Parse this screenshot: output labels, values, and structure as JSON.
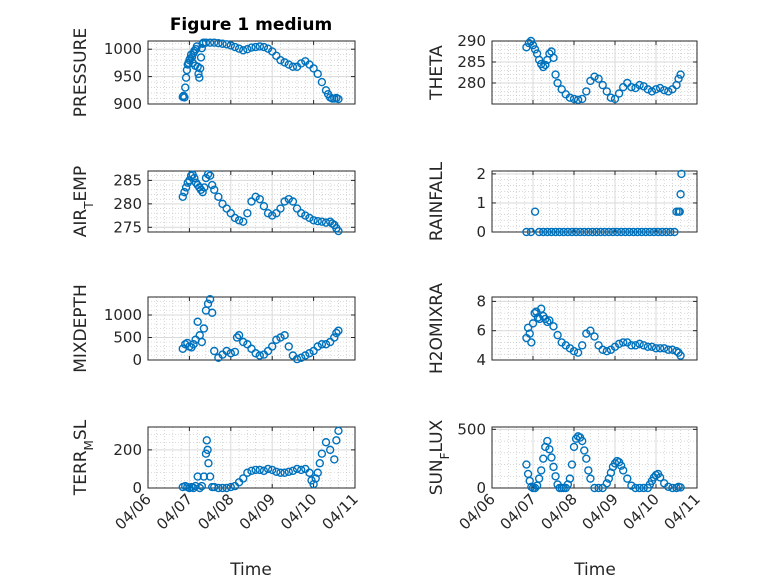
{
  "colors": {
    "marker": "#0072BD",
    "axis": "#262626",
    "grid": "#bfbfbf"
  },
  "chart_data": {
    "type": "scatter",
    "title": "Figure 1 medium",
    "xlabel": "Time",
    "x_ticks": [
      "04/06",
      "04/07",
      "04/08",
      "04/09",
      "04/10",
      "04/11"
    ],
    "grid": true,
    "panels": [
      {
        "ylabel": "PRESSURE",
        "ylim": [
          900,
          1015
        ],
        "yticks": [
          "900",
          "950",
          "1000"
        ],
        "ytick_values": [
          900,
          950,
          1000
        ],
        "x": [
          6.84,
          6.86,
          6.88,
          6.9,
          6.92,
          6.94,
          6.96,
          6.98,
          7.0,
          7.02,
          7.04,
          7.06,
          7.08,
          7.1,
          7.12,
          7.14,
          7.16,
          7.18,
          7.2,
          7.22,
          7.24,
          7.26,
          7.28,
          7.3,
          7.32,
          7.34,
          7.4,
          7.5,
          7.6,
          7.7,
          7.8,
          7.9,
          8.0,
          8.1,
          8.2,
          8.3,
          8.4,
          8.5,
          8.6,
          8.7,
          8.8,
          8.9,
          9.0,
          9.1,
          9.2,
          9.3,
          9.4,
          9.5,
          9.6,
          9.7,
          9.8,
          9.9,
          10.0,
          10.1,
          10.2,
          10.3,
          10.35,
          10.4,
          10.45,
          10.5,
          10.55,
          10.6
        ],
        "y": [
          913,
          915,
          912,
          930,
          948,
          962,
          972,
          975,
          980,
          983,
          990,
          985,
          975,
          993,
          997,
          970,
          1000,
          1005,
          968,
          955,
          948,
          965,
          985,
          1002,
          1010,
          1012,
          1012,
          1012,
          1012,
          1011,
          1010,
          1009,
          1007,
          1004,
          1001,
          998,
          1000,
          1003,
          1004,
          1005,
          1004,
          1001,
          996,
          988,
          980,
          976,
          972,
          968,
          968,
          974,
          978,
          972,
          965,
          955,
          940,
          925,
          918,
          912,
          910,
          910,
          911,
          909
        ]
      },
      {
        "ylabel": "THETA",
        "ylim": [
          275,
          290
        ],
        "yticks": [
          "280",
          "285",
          "290"
        ],
        "ytick_values": [
          280,
          285,
          290
        ],
        "x": [
          6.84,
          6.9,
          6.95,
          7.0,
          7.05,
          7.1,
          7.15,
          7.2,
          7.25,
          7.3,
          7.35,
          7.4,
          7.45,
          7.5,
          7.55,
          7.6,
          7.7,
          7.8,
          7.9,
          8.0,
          8.1,
          8.2,
          8.3,
          8.4,
          8.5,
          8.6,
          8.7,
          8.8,
          8.9,
          9.0,
          9.1,
          9.2,
          9.3,
          9.4,
          9.5,
          9.6,
          9.7,
          9.8,
          9.9,
          10.0,
          10.1,
          10.2,
          10.3,
          10.4,
          10.5,
          10.55,
          10.6
        ],
        "y": [
          288.5,
          289.5,
          290,
          289,
          288,
          287,
          285.5,
          284.5,
          283.8,
          284.3,
          285.5,
          287,
          287.5,
          286,
          282,
          280,
          278.5,
          277.3,
          276.5,
          276.2,
          276,
          276.2,
          278,
          280.5,
          281.5,
          281,
          279.5,
          278,
          276.5,
          276.2,
          277.5,
          279,
          280,
          279,
          278.8,
          279.5,
          279.2,
          278.5,
          278,
          278.5,
          278.8,
          278.3,
          278,
          278.5,
          279.5,
          281,
          282
        ]
      },
      {
        "ylabel": "AIR_TEMP",
        "ylim": [
          274,
          287
        ],
        "yticks": [
          "275",
          "280",
          "285"
        ],
        "ytick_values": [
          275,
          280,
          285
        ],
        "x": [
          6.84,
          6.88,
          6.92,
          6.96,
          7.0,
          7.04,
          7.08,
          7.12,
          7.16,
          7.2,
          7.24,
          7.28,
          7.32,
          7.36,
          7.4,
          7.45,
          7.5,
          7.55,
          7.6,
          7.7,
          7.8,
          7.9,
          8.0,
          8.1,
          8.2,
          8.3,
          8.4,
          8.5,
          8.6,
          8.7,
          8.8,
          8.9,
          9.0,
          9.1,
          9.2,
          9.3,
          9.4,
          9.5,
          9.6,
          9.7,
          9.8,
          9.9,
          10.0,
          10.1,
          10.2,
          10.3,
          10.4,
          10.45,
          10.5,
          10.55,
          10.6
        ],
        "y": [
          281.5,
          282.5,
          283.5,
          284.5,
          285,
          286,
          286.2,
          285.5,
          284.5,
          284,
          283.5,
          283,
          282.5,
          283.5,
          285.5,
          286.3,
          286,
          284,
          283,
          281.5,
          280,
          279,
          278,
          277,
          276.5,
          276.2,
          278,
          280.5,
          281.5,
          281,
          279.5,
          278,
          277.5,
          278,
          279,
          280.5,
          281,
          280.5,
          279,
          278,
          277.5,
          277,
          276.5,
          276.3,
          276.2,
          276,
          276.2,
          275.8,
          275.5,
          274.8,
          274.2
        ]
      },
      {
        "ylabel": "RAINFALL",
        "ylim": [
          0,
          2.1
        ],
        "yticks": [
          "0",
          "1",
          "2"
        ],
        "ytick_values": [
          0,
          1,
          2
        ],
        "x": [
          6.84,
          6.95,
          7.05,
          7.15,
          7.25,
          7.35,
          7.45,
          7.55,
          7.65,
          7.75,
          7.85,
          7.95,
          8.05,
          8.15,
          8.25,
          8.35,
          8.45,
          8.55,
          8.65,
          8.75,
          8.85,
          8.95,
          9.05,
          9.15,
          9.25,
          9.35,
          9.45,
          9.55,
          9.65,
          9.75,
          9.85,
          9.95,
          10.05,
          10.15,
          10.25,
          10.35,
          10.45,
          10.5,
          10.55,
          10.58,
          10.6,
          10.62
        ],
        "y": [
          0,
          0,
          0.7,
          0,
          0,
          0,
          0,
          0,
          0,
          0,
          0,
          0,
          0,
          0,
          0,
          0,
          0,
          0,
          0,
          0,
          0,
          0,
          0,
          0,
          0,
          0,
          0,
          0,
          0,
          0,
          0,
          0,
          0,
          0,
          0,
          0,
          0,
          0.7,
          0.7,
          0.7,
          1.3,
          2.0
        ]
      },
      {
        "ylabel": "MIXDEPTH",
        "ylim": [
          0,
          1400
        ],
        "yticks": [
          "0",
          "500",
          "1000"
        ],
        "ytick_values": [
          0,
          500,
          1000
        ],
        "x": [
          6.84,
          6.9,
          6.95,
          7.0,
          7.05,
          7.1,
          7.15,
          7.2,
          7.25,
          7.3,
          7.35,
          7.4,
          7.45,
          7.5,
          7.55,
          7.6,
          7.7,
          7.8,
          7.9,
          8.0,
          8.1,
          8.15,
          8.2,
          8.3,
          8.4,
          8.5,
          8.6,
          8.7,
          8.8,
          8.9,
          9.0,
          9.1,
          9.2,
          9.3,
          9.4,
          9.5,
          9.6,
          9.7,
          9.8,
          9.9,
          10.0,
          10.1,
          10.2,
          10.3,
          10.4,
          10.5,
          10.55,
          10.6
        ],
        "y": [
          250,
          350,
          380,
          300,
          280,
          350,
          450,
          850,
          550,
          400,
          700,
          1100,
          1250,
          1350,
          1050,
          200,
          50,
          120,
          200,
          150,
          180,
          500,
          550,
          400,
          350,
          250,
          150,
          100,
          120,
          200,
          300,
          450,
          500,
          550,
          300,
          100,
          20,
          50,
          100,
          150,
          200,
          300,
          350,
          350,
          400,
          500,
          600,
          650
        ]
      },
      {
        "ylabel": "H2OMIXRA",
        "ylim": [
          4,
          8.3
        ],
        "yticks": [
          "4",
          "6",
          "8"
        ],
        "ytick_values": [
          4,
          6,
          8
        ],
        "x": [
          6.84,
          6.88,
          6.92,
          6.96,
          7.0,
          7.04,
          7.08,
          7.12,
          7.16,
          7.2,
          7.25,
          7.3,
          7.35,
          7.4,
          7.5,
          7.6,
          7.7,
          7.8,
          7.9,
          8.0,
          8.1,
          8.2,
          8.3,
          8.4,
          8.5,
          8.6,
          8.7,
          8.8,
          8.9,
          9.0,
          9.1,
          9.2,
          9.3,
          9.4,
          9.5,
          9.6,
          9.7,
          9.8,
          9.9,
          10.0,
          10.1,
          10.2,
          10.3,
          10.4,
          10.5,
          10.55,
          10.6
        ],
        "y": [
          5.5,
          6.2,
          5.8,
          5.2,
          6.5,
          7.2,
          7.3,
          6.9,
          6.8,
          7.5,
          7.0,
          6.8,
          6.6,
          6.7,
          6.3,
          5.7,
          5.2,
          5.0,
          4.8,
          4.6,
          4.5,
          5.0,
          5.8,
          6.0,
          5.6,
          5.0,
          4.7,
          4.6,
          4.7,
          4.9,
          5.1,
          5.2,
          5.2,
          5.0,
          5.0,
          5.1,
          5.0,
          4.9,
          4.9,
          4.8,
          4.8,
          4.8,
          4.7,
          4.7,
          4.6,
          4.5,
          4.3
        ]
      },
      {
        "ylabel": "TERR_MSL",
        "ylim": [
          0,
          320
        ],
        "yticks": [
          "0",
          "200"
        ],
        "ytick_values": [
          0,
          200
        ],
        "x": [
          6.84,
          6.9,
          6.95,
          7.0,
          7.05,
          7.1,
          7.15,
          7.2,
          7.25,
          7.3,
          7.35,
          7.4,
          7.42,
          7.44,
          7.46,
          7.5,
          7.55,
          7.6,
          7.7,
          7.8,
          7.9,
          8.0,
          8.1,
          8.2,
          8.3,
          8.4,
          8.5,
          8.6,
          8.7,
          8.8,
          8.9,
          9.0,
          9.1,
          9.2,
          9.3,
          9.4,
          9.5,
          9.6,
          9.7,
          9.8,
          9.9,
          9.95,
          10.0,
          10.05,
          10.1,
          10.15,
          10.2,
          10.3,
          10.4,
          10.5,
          10.55,
          10.6
        ],
        "y": [
          5,
          10,
          5,
          0,
          5,
          0,
          10,
          60,
          0,
          10,
          60,
          180,
          250,
          200,
          130,
          60,
          5,
          5,
          0,
          0,
          0,
          5,
          10,
          30,
          50,
          80,
          90,
          95,
          95,
          90,
          100,
          95,
          85,
          80,
          80,
          85,
          90,
          100,
          95,
          100,
          80,
          40,
          20,
          50,
          80,
          130,
          180,
          240,
          200,
          150,
          250,
          300
        ]
      },
      {
        "ylabel": "SUN_FLUX",
        "ylim": [
          0,
          520
        ],
        "yticks": [
          "0",
          "500"
        ],
        "ytick_values": [
          0,
          500
        ],
        "x": [
          6.84,
          6.88,
          6.92,
          6.96,
          7.0,
          7.05,
          7.1,
          7.15,
          7.2,
          7.25,
          7.3,
          7.35,
          7.4,
          7.45,
          7.5,
          7.55,
          7.6,
          7.65,
          7.7,
          7.75,
          7.8,
          7.85,
          7.9,
          7.95,
          8.0,
          8.05,
          8.1,
          8.15,
          8.2,
          8.25,
          8.3,
          8.35,
          8.4,
          8.5,
          8.6,
          8.7,
          8.8,
          8.85,
          8.9,
          8.95,
          9.0,
          9.05,
          9.1,
          9.15,
          9.2,
          9.3,
          9.4,
          9.5,
          9.6,
          9.7,
          9.8,
          9.85,
          9.9,
          9.95,
          10.0,
          10.05,
          10.1,
          10.2,
          10.3,
          10.4,
          10.5,
          10.55,
          10.6
        ],
        "y": [
          200,
          120,
          60,
          10,
          0,
          0,
          20,
          80,
          150,
          250,
          350,
          400,
          330,
          260,
          180,
          100,
          30,
          0,
          0,
          0,
          0,
          30,
          80,
          200,
          350,
          420,
          440,
          430,
          400,
          320,
          250,
          150,
          80,
          0,
          0,
          0,
          40,
          80,
          130,
          180,
          210,
          230,
          220,
          190,
          150,
          80,
          20,
          0,
          0,
          0,
          0,
          30,
          60,
          90,
          110,
          120,
          90,
          40,
          10,
          0,
          0,
          10,
          5
        ]
      }
    ]
  }
}
